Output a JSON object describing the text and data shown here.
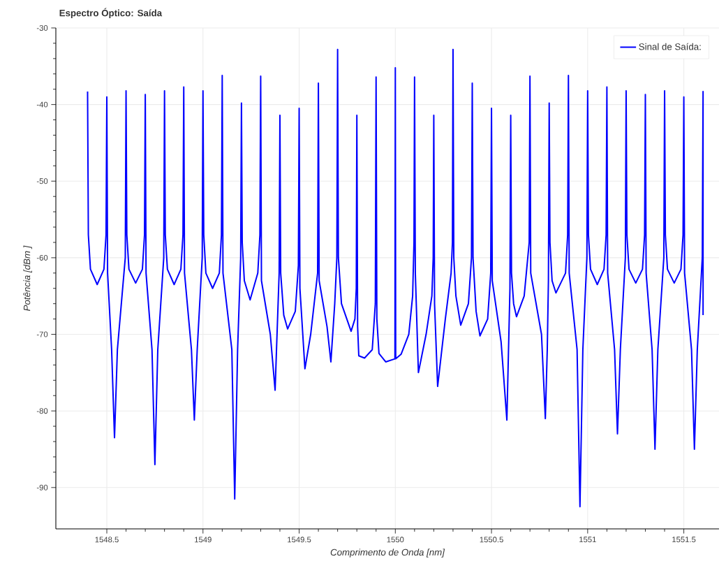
{
  "chart_data": {
    "type": "line",
    "title": "Espectro Óptico: Saída",
    "xlabel": "Comprimento de Onda [nm]",
    "ylabel": "Potência [dBm ]",
    "x": [
      1548.4,
      1548.404,
      1548.415,
      1548.45,
      1548.485,
      1548.496,
      1548.5,
      1548.504,
      1548.525,
      1548.54,
      1548.555,
      1548.596,
      1548.6,
      1548.604,
      1548.615,
      1548.65,
      1548.685,
      1548.696,
      1548.7,
      1548.704,
      1548.735,
      1548.75,
      1548.765,
      1548.796,
      1548.8,
      1548.804,
      1548.815,
      1548.85,
      1548.885,
      1548.896,
      1548.9,
      1548.904,
      1548.94,
      1548.955,
      1548.97,
      1548.996,
      1549,
      1549.004,
      1549.015,
      1549.05,
      1549.085,
      1549.096,
      1549.1,
      1549.104,
      1549.15,
      1549.165,
      1549.18,
      1549.196,
      1549.2,
      1549.204,
      1549.215,
      1549.245,
      1549.285,
      1549.296,
      1549.3,
      1549.304,
      1549.35,
      1549.375,
      1549.385,
      1549.396,
      1549.4,
      1549.404,
      1549.42,
      1549.44,
      1549.48,
      1549.496,
      1549.5,
      1549.504,
      1549.53,
      1549.56,
      1549.596,
      1549.6,
      1549.604,
      1549.645,
      1549.665,
      1549.685,
      1549.696,
      1549.7,
      1549.704,
      1549.72,
      1549.77,
      1549.79,
      1549.797,
      1549.8,
      1549.804,
      1549.81,
      1549.84,
      1549.88,
      1549.896,
      1549.9,
      1549.904,
      1549.915,
      1549.95,
      1549.998,
      1550,
      1550.002,
      1550.03,
      1550.07,
      1550.09,
      1550.097,
      1550.1,
      1550.104,
      1550.12,
      1550.16,
      1550.19,
      1550.197,
      1550.2,
      1550.204,
      1550.22,
      1550.26,
      1550.29,
      1550.297,
      1550.3,
      1550.304,
      1550.315,
      1550.34,
      1550.38,
      1550.396,
      1550.4,
      1550.404,
      1550.42,
      1550.44,
      1550.48,
      1550.496,
      1550.5,
      1550.504,
      1550.55,
      1550.58,
      1550.596,
      1550.6,
      1550.604,
      1550.615,
      1550.63,
      1550.67,
      1550.696,
      1550.7,
      1550.704,
      1550.76,
      1550.78,
      1550.79,
      1550.796,
      1550.8,
      1550.804,
      1550.815,
      1550.835,
      1550.885,
      1550.896,
      1550.9,
      1550.904,
      1550.945,
      1550.96,
      1550.975,
      1550.996,
      1551,
      1551.004,
      1551.015,
      1551.05,
      1551.085,
      1551.096,
      1551.1,
      1551.104,
      1551.14,
      1551.155,
      1551.17,
      1551.196,
      1551.2,
      1551.204,
      1551.215,
      1551.25,
      1551.285,
      1551.296,
      1551.3,
      1551.304,
      1551.335,
      1551.35,
      1551.365,
      1551.396,
      1551.4,
      1551.404,
      1551.415,
      1551.45,
      1551.485,
      1551.496,
      1551.5,
      1551.504,
      1551.54,
      1551.555,
      1551.57,
      1551.596,
      1551.6,
      1551.6
    ],
    "series": [
      {
        "name": "Sinal de Saída:",
        "color": "#0000ff",
        "values": [
          -38.3,
          -57,
          -61.5,
          -63.5,
          -61.5,
          -57,
          -39,
          -62,
          -72,
          -83.5,
          -72,
          -60,
          -38.2,
          -57,
          -61.5,
          -63.3,
          -61.5,
          -57,
          -38.7,
          -62,
          -72,
          -87,
          -72,
          -60,
          -38.2,
          -57,
          -61.5,
          -63.5,
          -61.5,
          -57,
          -37.7,
          -62,
          -72,
          -81.2,
          -72,
          -60,
          -38.2,
          -57,
          -62,
          -64,
          -62,
          -57,
          -36.2,
          -62,
          -72,
          -91.5,
          -72,
          -60,
          -39.8,
          -58,
          -63,
          -65.5,
          -62,
          -57,
          -36.3,
          -63,
          -70,
          -77.3,
          -70,
          -62,
          -41.4,
          -62,
          -67.5,
          -69.3,
          -67,
          -61,
          -40.5,
          -64,
          -74.5,
          -70,
          -62,
          -37.2,
          -63,
          -69,
          -73.6,
          -66,
          -60,
          -32.8,
          -60,
          -66,
          -69.6,
          -68,
          -64,
          -41.4,
          -69,
          -72.8,
          -73.1,
          -72,
          -66,
          -36.4,
          -68,
          -72.5,
          -73.6,
          -73.2,
          -35.2,
          -73.2,
          -72.6,
          -70,
          -65,
          -58,
          -36.4,
          -62,
          -75,
          -70,
          -65,
          -60,
          -41.4,
          -66,
          -76.8,
          -68,
          -62,
          -58,
          -32.8,
          -60,
          -65,
          -68.8,
          -66,
          -60,
          -37.2,
          -60,
          -67,
          -70.2,
          -68,
          -62,
          -40.5,
          -63,
          -71,
          -81.2,
          -64,
          -41.4,
          -62,
          -66,
          -67.7,
          -65,
          -58,
          -36.3,
          -62,
          -70,
          -81,
          -72,
          -63,
          -39.8,
          -58,
          -63,
          -64.6,
          -62,
          -57,
          -36.2,
          -62,
          -72,
          -92.5,
          -72,
          -60,
          -38.2,
          -57,
          -61.5,
          -63.5,
          -61.5,
          -57,
          -37.7,
          -62,
          -72,
          -83,
          -72,
          -60,
          -38.2,
          -57,
          -61.5,
          -63.3,
          -61.5,
          -57,
          -38.7,
          -62,
          -72,
          -85,
          -72,
          -60,
          -38.2,
          -57,
          -61.5,
          -63.3,
          -61.5,
          -57,
          -39,
          -62,
          -72,
          -85,
          -72,
          -60,
          -38.3,
          -67.5
        ]
      }
    ],
    "xlim": [
      1548.235,
      1551.683
    ],
    "ylim": [
      -95.4,
      -30
    ],
    "xticks": [
      1548.5,
      1549,
      1549.5,
      1550,
      1550.5,
      1551,
      1551.5
    ],
    "yticks": [
      -90,
      -80,
      -70,
      -60,
      -50,
      -40,
      -30
    ],
    "grid": true,
    "legend": "top right"
  }
}
